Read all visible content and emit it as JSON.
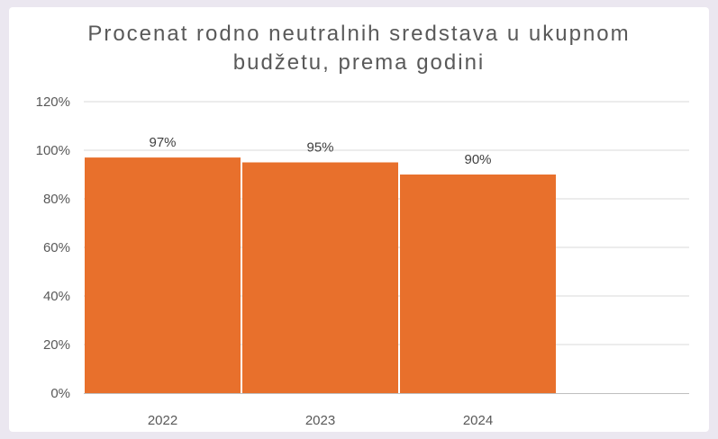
{
  "chart_data": {
    "type": "bar",
    "title_lines": [
      "Procenat rodno neutralnih sredstava u ukupnom",
      "budžetu, prema godini"
    ],
    "categories": [
      "2022",
      "2023",
      "2024"
    ],
    "values": [
      97,
      95,
      90
    ],
    "data_labels": [
      "97%",
      "95%",
      "90%"
    ],
    "y_ticks": [
      "0%",
      "20%",
      "40%",
      "60%",
      "80%",
      "100%",
      "120%"
    ],
    "ylim": [
      0,
      120
    ],
    "grid": true,
    "legend": "none",
    "bar_color": "#e8702c",
    "grid_color": "#d9d9d9"
  }
}
